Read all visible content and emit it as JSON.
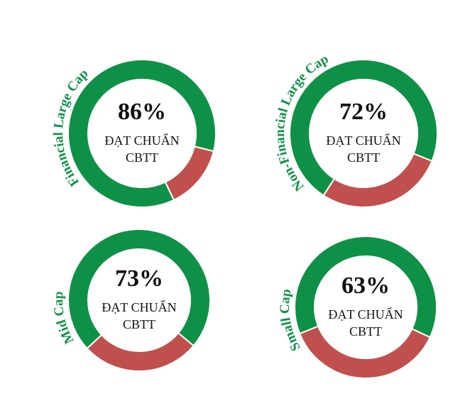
{
  "chart_data": [
    {
      "type": "donut",
      "title": "Financial Large Cap",
      "values": [
        86,
        14
      ],
      "value_labels": [
        "86%",
        null
      ],
      "center_label": [
        "ĐẠT CHUẨN",
        "CBTT"
      ],
      "colors": [
        "#0e9146",
        "#c0504d"
      ]
    },
    {
      "type": "donut",
      "title": "Non-Financial Large Cap",
      "values": [
        72,
        28
      ],
      "value_labels": [
        "72%",
        null
      ],
      "center_label": [
        "ĐẠT CHUẨN",
        "CBTT"
      ],
      "colors": [
        "#0e9146",
        "#c0504d"
      ]
    },
    {
      "type": "donut",
      "title": "Mid Cap",
      "values": [
        73,
        27
      ],
      "value_labels": [
        "73%",
        null
      ],
      "center_label": [
        "ĐẠT CHUẨN",
        "CBTT"
      ],
      "colors": [
        "#0e9146",
        "#c0504d"
      ]
    },
    {
      "type": "donut",
      "title": "Small Cap",
      "values": [
        63,
        37
      ],
      "value_labels": [
        "63%",
        null
      ],
      "center_label": [
        "ĐẠT CHUẨN",
        "CBTT"
      ],
      "colors": [
        "#0e9146",
        "#c0504d"
      ]
    }
  ]
}
